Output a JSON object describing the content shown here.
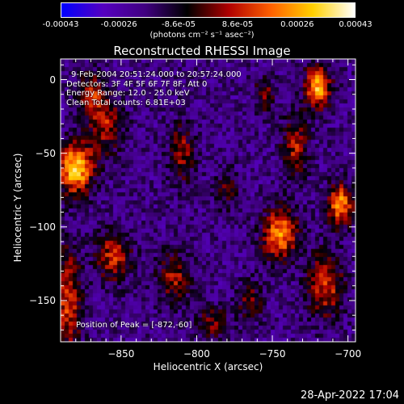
{
  "colorbar": {
    "ticks": [
      {
        "label": "-0.00043",
        "value": -0.00043
      },
      {
        "label": "-0.00026",
        "value": -0.00026
      },
      {
        "label": "-8.6e-05",
        "value": -8.6e-05
      },
      {
        "label": "8.6e-05",
        "value": 8.6e-05
      },
      {
        "label": "0.00026",
        "value": 0.00026
      },
      {
        "label": "0.00043",
        "value": 0.00043
      }
    ],
    "range": [
      -0.00043,
      0.00043
    ],
    "unit": "(photons cm⁻² s⁻¹ asec⁻²)",
    "colors": [
      "#0000ff",
      "#5500c0",
      "#400080",
      "#000000",
      "#b00000",
      "#ff6000",
      "#ffd000",
      "#ffffff"
    ]
  },
  "chart_data": {
    "type": "heatmap",
    "title": "Reconstructed RHESSI Image",
    "xlabel": "Heliocentric X (arcsec)",
    "ylabel": "Heliocentric Y (arcsec)",
    "xlim": [
      -890,
      -695
    ],
    "ylim": [
      -178,
      14
    ],
    "xticks": [
      {
        "label": "−850",
        "value": -850
      },
      {
        "label": "−800",
        "value": -800
      },
      {
        "label": "−750",
        "value": -750
      },
      {
        "label": "−700",
        "value": -700
      }
    ],
    "yticks": [
      {
        "label": "0",
        "value": 0
      },
      {
        "label": "−50",
        "value": -50
      },
      {
        "label": "−100",
        "value": -100
      },
      {
        "label": "−150",
        "value": -150
      }
    ],
    "annotations": [
      "9-Feb-2004 20:51:24.000 to 20:57:24.000",
      "Detectors: 3F 4F 5F 6F 7F 8F, Att 0",
      "Energy Range: 12.0 - 25.0 keV",
      "Clean     Total counts: 6.81E+03"
    ],
    "peak_label": "Position of Peak = [-872,-60]",
    "peak": [
      -872,
      -60
    ],
    "sources": [
      {
        "x": -880,
        "y": -60,
        "amp": 1.0,
        "sx": 8,
        "sy": 12
      },
      {
        "x": -885,
        "y": -150,
        "amp": 0.6,
        "sx": 6,
        "sy": 25
      },
      {
        "x": -860,
        "y": -30,
        "amp": 0.5,
        "sx": 8,
        "sy": 14
      },
      {
        "x": -855,
        "y": -120,
        "amp": 0.55,
        "sx": 8,
        "sy": 12
      },
      {
        "x": -870,
        "y": -10,
        "amp": 0.45,
        "sx": 6,
        "sy": 10
      },
      {
        "x": -810,
        "y": -50,
        "amp": 0.45,
        "sx": 6,
        "sy": 14
      },
      {
        "x": -815,
        "y": -135,
        "amp": 0.45,
        "sx": 8,
        "sy": 12
      },
      {
        "x": -790,
        "y": -165,
        "amp": 0.35,
        "sx": 8,
        "sy": 8
      },
      {
        "x": -780,
        "y": -75,
        "amp": 0.3,
        "sx": 5,
        "sy": 10
      },
      {
        "x": -745,
        "y": -105,
        "amp": 0.8,
        "sx": 8,
        "sy": 12
      },
      {
        "x": -720,
        "y": -5,
        "amp": 0.9,
        "sx": 6,
        "sy": 10
      },
      {
        "x": -705,
        "y": -85,
        "amp": 0.8,
        "sx": 6,
        "sy": 10
      },
      {
        "x": -715,
        "y": -140,
        "amp": 0.6,
        "sx": 8,
        "sy": 15
      },
      {
        "x": -735,
        "y": -45,
        "amp": 0.5,
        "sx": 6,
        "sy": 14
      },
      {
        "x": -755,
        "y": -10,
        "amp": 0.4,
        "sx": 5,
        "sy": 8
      },
      {
        "x": -765,
        "y": -150,
        "amp": 0.35,
        "sx": 6,
        "sy": 10
      }
    ]
  },
  "datestamp": "28-Apr-2022 17:04"
}
